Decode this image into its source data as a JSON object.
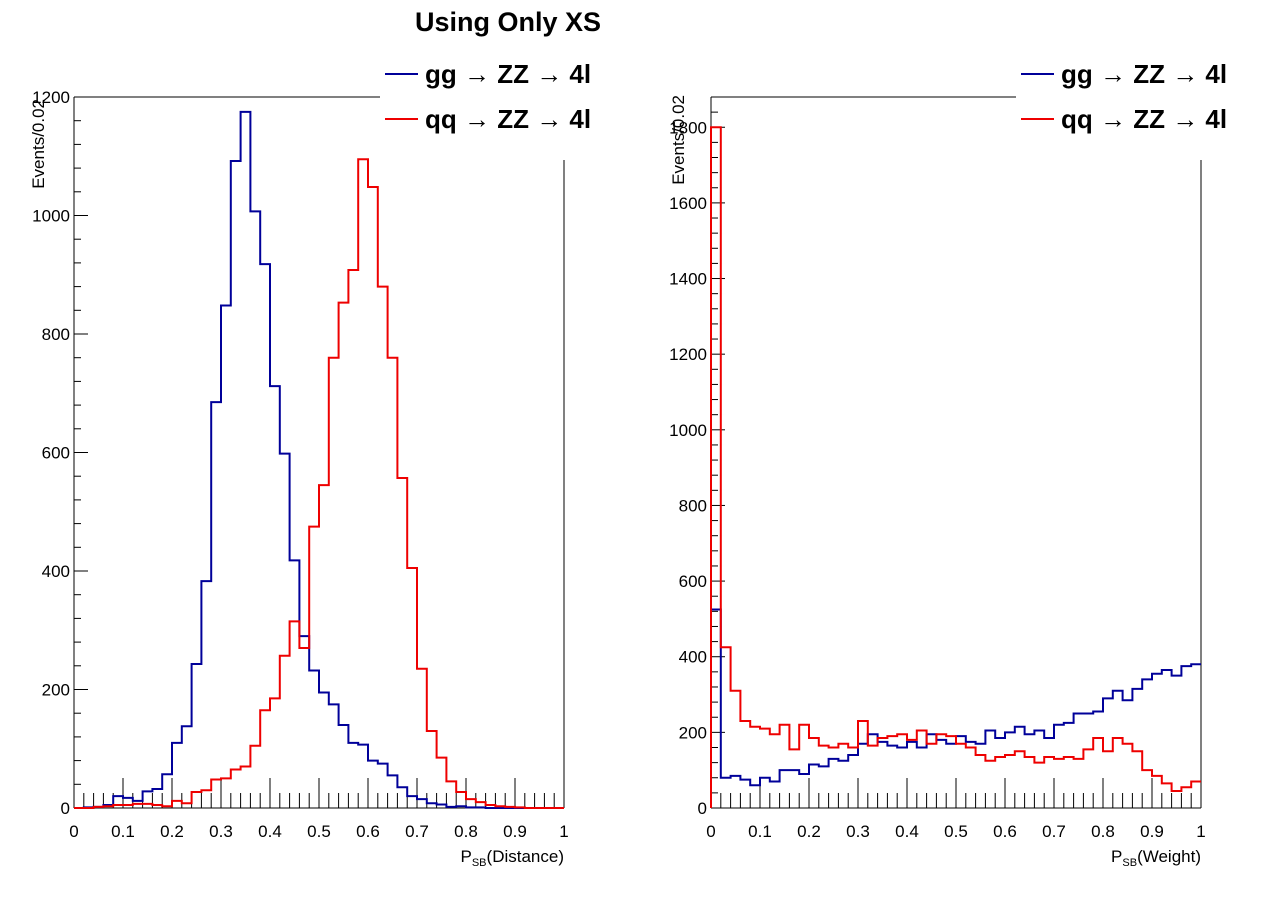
{
  "title": "Using Only XS",
  "colors": {
    "gg": "#000099",
    "qq": "#ee0000"
  },
  "chart_data": [
    {
      "type": "histogram-step",
      "name": "left",
      "xlabel_main": "P",
      "xlabel_sub": "SB",
      "xlabel_tail": "(Distance)",
      "ylabel": "Events/0.02",
      "xlim": [
        0,
        1
      ],
      "ylim": [
        0,
        1200
      ],
      "bin_width": 0.02,
      "xticks": [
        "0",
        "0.1",
        "0.2",
        "0.3",
        "0.4",
        "0.5",
        "0.6",
        "0.7",
        "0.8",
        "0.9",
        "1"
      ],
      "yticks": [
        "0",
        "200",
        "400",
        "600",
        "800",
        "1000",
        "1200"
      ],
      "legend": [
        "gg → ZZ → 4l",
        "qq → ZZ → 4l"
      ],
      "series": [
        {
          "name": "gg → ZZ → 4l",
          "color_key": "gg",
          "values": [
            0,
            1,
            2,
            5,
            20,
            17,
            12,
            28,
            32,
            57,
            110,
            138,
            243,
            383,
            685,
            848,
            1092,
            1175,
            1007,
            918,
            712,
            598,
            418,
            290,
            232,
            195,
            175,
            140,
            110,
            107,
            80,
            75,
            55,
            35,
            20,
            15,
            8,
            6,
            2,
            3,
            1,
            1,
            0,
            0,
            0,
            0,
            0,
            0,
            0,
            0
          ]
        },
        {
          "name": "qq → ZZ → 4l",
          "color_key": "qq",
          "values": [
            0,
            0,
            2,
            3,
            5,
            5,
            7,
            7,
            5,
            3,
            12,
            8,
            27,
            30,
            48,
            50,
            65,
            70,
            105,
            165,
            185,
            257,
            315,
            270,
            475,
            545,
            760,
            853,
            908,
            1095,
            1048,
            880,
            760,
            557,
            405,
            235,
            130,
            85,
            45,
            27,
            15,
            10,
            5,
            3,
            2,
            1,
            0,
            0,
            0,
            0
          ]
        }
      ]
    },
    {
      "type": "histogram-step",
      "name": "right",
      "xlabel_main": "P",
      "xlabel_sub": "SB",
      "xlabel_tail": "(Weight)",
      "ylabel": "Events/0.02",
      "xlim": [
        0,
        1
      ],
      "ylim": [
        0,
        1880
      ],
      "bin_width": 0.02,
      "xticks": [
        "0",
        "0.1",
        "0.2",
        "0.3",
        "0.4",
        "0.5",
        "0.6",
        "0.7",
        "0.8",
        "0.9",
        "1"
      ],
      "yticks": [
        "0",
        "200",
        "400",
        "600",
        "800",
        "1000",
        "1200",
        "1400",
        "1600",
        "1800"
      ],
      "legend": [
        "gg → ZZ → 4l",
        "qq → ZZ → 4l"
      ],
      "series": [
        {
          "name": "gg → ZZ → 4l",
          "color_key": "gg",
          "values": [
            525,
            80,
            85,
            75,
            60,
            80,
            70,
            100,
            100,
            90,
            115,
            110,
            130,
            125,
            140,
            170,
            195,
            175,
            165,
            160,
            175,
            160,
            195,
            180,
            170,
            190,
            175,
            170,
            205,
            185,
            200,
            215,
            195,
            205,
            185,
            220,
            225,
            250,
            250,
            255,
            290,
            310,
            285,
            315,
            340,
            355,
            365,
            350,
            375,
            380
          ]
        },
        {
          "name": "qq → ZZ → 4l",
          "color_key": "qq",
          "values": [
            1800,
            425,
            310,
            230,
            215,
            210,
            195,
            220,
            155,
            220,
            185,
            165,
            160,
            170,
            160,
            230,
            165,
            185,
            190,
            195,
            180,
            205,
            170,
            195,
            190,
            170,
            160,
            140,
            125,
            135,
            140,
            150,
            135,
            120,
            135,
            130,
            135,
            130,
            155,
            185,
            150,
            185,
            170,
            150,
            100,
            85,
            65,
            45,
            55,
            70
          ]
        }
      ]
    }
  ]
}
